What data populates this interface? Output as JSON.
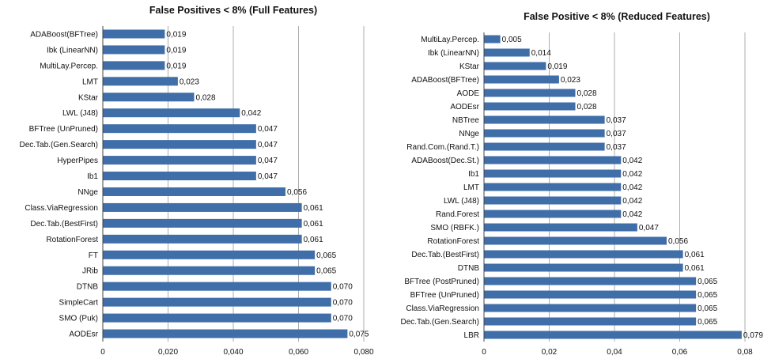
{
  "chart_data": [
    {
      "type": "bar",
      "orientation": "horizontal",
      "title": "False Positives < 8% (Full Features)",
      "categories": [
        "ADABoost(BFTree)",
        "Ibk (LinearNN)",
        "MultiLay.Percep.",
        "LMT",
        "KStar",
        "LWL (J48)",
        "BFTree (UnPruned)",
        "Dec.Tab.(Gen.Search)",
        "HyperPipes",
        "Ib1",
        "NNge",
        "Class.ViaRegression",
        "Dec.Tab.(BestFirst)",
        "RotationForest",
        "FT",
        "JRib",
        "DTNB",
        "SimpleCart",
        "SMO (Puk)",
        "AODEsr"
      ],
      "values": [
        0.019,
        0.019,
        0.019,
        0.023,
        0.028,
        0.042,
        0.047,
        0.047,
        0.047,
        0.047,
        0.056,
        0.061,
        0.061,
        0.061,
        0.065,
        0.065,
        0.07,
        0.07,
        0.07,
        0.075
      ],
      "value_labels": [
        "0,019",
        "0,019",
        "0,019",
        "0,023",
        "0,028",
        "0,042",
        "0,047",
        "0,047",
        "0,047",
        "0,047",
        "0,056",
        "0,061",
        "0,061",
        "0,061",
        "0,065",
        "0,065",
        "0,070",
        "0,070",
        "0,070",
        "0,075"
      ],
      "xlim": [
        0,
        0.08
      ],
      "ticks": [
        0,
        0.02,
        0.04,
        0.06,
        0.08
      ],
      "tick_labels": [
        "0",
        "0,020",
        "0,040",
        "0,060",
        "0,080"
      ],
      "grid": true,
      "bar_color": "#3f6ea8"
    },
    {
      "type": "bar",
      "orientation": "horizontal",
      "title": "False Positive < 8% (Reduced Features)",
      "categories": [
        "MultiLay.Percep.",
        "Ibk (LinearNN)",
        "KStar",
        "ADABoost(BFTree)",
        "AODE",
        "AODEsr",
        "NBTree",
        "NNge",
        "Rand.Com.(Rand.T.)",
        "ADABoost(Dec.St.)",
        "Ib1",
        "LMT",
        "LWL (J48)",
        "Rand.Forest",
        "SMO (RBFK.)",
        "RotationForest",
        "Dec.Tab.(BestFirst)",
        "DTNB",
        "BFTree (PostPruned)",
        "BFTree (UnPruned)",
        "Class.ViaRegression",
        "Dec.Tab.(Gen.Search)",
        "LBR"
      ],
      "values": [
        0.005,
        0.014,
        0.019,
        0.023,
        0.028,
        0.028,
        0.037,
        0.037,
        0.037,
        0.042,
        0.042,
        0.042,
        0.042,
        0.042,
        0.047,
        0.056,
        0.061,
        0.061,
        0.065,
        0.065,
        0.065,
        0.065,
        0.079
      ],
      "value_labels": [
        "0,005",
        "0,014",
        "0,019",
        "0,023",
        "0,028",
        "0,028",
        "0,037",
        "0,037",
        "0,037",
        "0,042",
        "0,042",
        "0,042",
        "0,042",
        "0,042",
        "0,047",
        "0,056",
        "0,061",
        "0,061",
        "0,065",
        "0,065",
        "0,065",
        "0,065",
        "0,079"
      ],
      "xlim": [
        0,
        0.08
      ],
      "ticks": [
        0,
        0.02,
        0.04,
        0.06,
        0.08
      ],
      "tick_labels": [
        "0",
        "0,02",
        "0,04",
        "0,06",
        "0,08"
      ],
      "grid": true,
      "bar_color": "#3f6ea8"
    }
  ]
}
